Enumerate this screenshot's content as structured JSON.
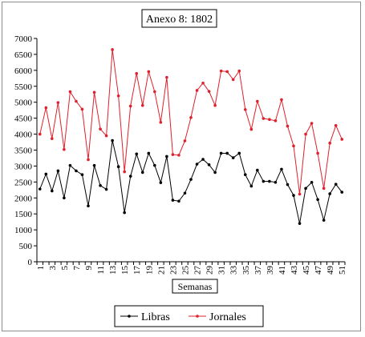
{
  "chart_data": {
    "type": "line",
    "title": "Anexo 8: 1802",
    "xlabel": "Semanas",
    "ylabel": "",
    "ylim": [
      0,
      7000
    ],
    "yticks": [
      0,
      500,
      1000,
      1500,
      2000,
      2500,
      3000,
      3500,
      4000,
      4500,
      5000,
      5500,
      6000,
      6500,
      7000
    ],
    "xticks": [
      1,
      3,
      5,
      7,
      9,
      11,
      13,
      15,
      17,
      19,
      21,
      23,
      25,
      27,
      29,
      31,
      33,
      35,
      37,
      39,
      41,
      43,
      45,
      47,
      49,
      51
    ],
    "grid": false,
    "legend": "bottom",
    "x": [
      1,
      2,
      3,
      4,
      5,
      6,
      7,
      8,
      9,
      10,
      11,
      12,
      13,
      14,
      15,
      16,
      17,
      18,
      19,
      20,
      21,
      22,
      23,
      24,
      25,
      26,
      27,
      28,
      29,
      30,
      31,
      32,
      33,
      34,
      35,
      36,
      37,
      38,
      39,
      40,
      41,
      42,
      43,
      44,
      45,
      46,
      47,
      48,
      49,
      50,
      51
    ],
    "series": [
      {
        "name": "Libras",
        "color": "#000000",
        "values": [
          2280,
          2750,
          2220,
          2850,
          2000,
          3020,
          2850,
          2730,
          1750,
          3020,
          2390,
          2270,
          3800,
          2980,
          1540,
          2680,
          3380,
          2800,
          3400,
          3020,
          2480,
          3300,
          1930,
          1900,
          2150,
          2580,
          3060,
          3210,
          3040,
          2800,
          3400,
          3400,
          3260,
          3400,
          2730,
          2370,
          2870,
          2520,
          2520,
          2490,
          2900,
          2420,
          2080,
          1200,
          2300,
          2490,
          1950,
          1300,
          2130,
          2430,
          2180
        ]
      },
      {
        "name": "Jornales",
        "color": "#e0202c",
        "values": [
          4000,
          4830,
          3860,
          4990,
          3520,
          5330,
          5030,
          4780,
          3200,
          5310,
          4160,
          3950,
          6650,
          5200,
          2820,
          4880,
          5900,
          4900,
          5960,
          5330,
          4370,
          5780,
          3360,
          3340,
          3790,
          4520,
          5370,
          5600,
          5340,
          4900,
          5980,
          5960,
          5710,
          5980,
          4770,
          4150,
          5030,
          4490,
          4460,
          4420,
          5080,
          4250,
          3630,
          2120,
          4000,
          4340,
          3400,
          2300,
          3720,
          4270,
          3840
        ]
      }
    ]
  }
}
